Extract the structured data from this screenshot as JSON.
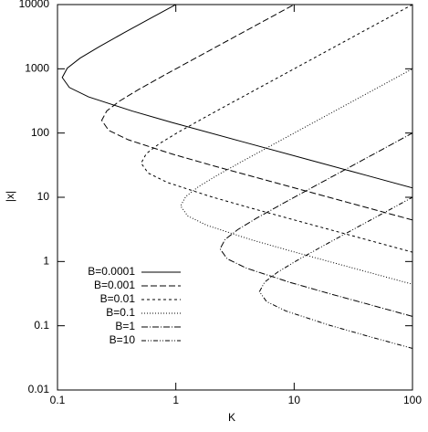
{
  "chart_data": {
    "type": "line",
    "xlabel": "K",
    "ylabel": "|x|",
    "log_x": true,
    "log_y": true,
    "xlim": [
      0.1,
      100
    ],
    "ylim": [
      0.01,
      10000
    ],
    "xticks": [
      0.1,
      1,
      10,
      100
    ],
    "yticks": [
      0.01,
      0.1,
      1,
      10,
      100,
      1000,
      10000
    ],
    "legend": "lower-left",
    "series": [
      {
        "name": "B=0.0001",
        "color": "#000000",
        "dash": "none",
        "x": [
          101.3,
          40.6,
          14.63,
          3.66,
          0.929,
          0.428,
          0.183,
          0.126,
          0.1097,
          0.121,
          0.155,
          0.224,
          0.367,
          0.586,
          1.098
        ],
        "values": [
          13.9,
          22,
          36.6,
          73.2,
          146,
          220,
          366,
          512,
          732,
          1025,
          1464,
          2196,
          3660,
          5856,
          10980
        ]
      },
      {
        "name": "B=0.001",
        "color": "#000000",
        "dash": "7,3",
        "x": [
          100.5,
          31.5,
          7.9,
          2.0,
          0.923,
          0.394,
          0.271,
          0.2365,
          0.261,
          0.335,
          0.482,
          0.792,
          1.263,
          2.366,
          4.731,
          10.09
        ],
        "values": [
          4.42,
          7.89,
          15.8,
          31.5,
          47.3,
          78.9,
          110,
          157.7,
          221,
          315,
          473,
          789,
          1262,
          2366,
          4731,
          10093
        ]
      },
      {
        "name": "B=0.01",
        "color": "#000000",
        "dash": "3,3",
        "x": [
          101.0,
          34.66,
          17.01,
          4.312,
          1.988,
          0.849,
          0.584,
          0.5094,
          0.562,
          0.722,
          1.038,
          1.705,
          2.72,
          5.096,
          10.19,
          20.38,
          33.97,
          100.2
        ],
        "values": [
          1.39,
          2.38,
          3.4,
          6.79,
          10.2,
          17.0,
          23.8,
          33.97,
          47.6,
          67.9,
          101.9,
          169.9,
          271.8,
          509.6,
          1019,
          2038,
          3397,
          10021
        ]
      },
      {
        "name": "B=0.1",
        "color": "#000000",
        "dash": "1,2",
        "x": [
          101.7,
          36.65,
          16.37,
          9.293,
          4.284,
          1.829,
          1.259,
          1.098,
          1.212,
          1.556,
          2.237,
          3.675,
          5.863,
          10.98,
          21.96,
          43.92,
          100.3
        ],
        "values": [
          0.439,
          0.732,
          1.098,
          1.464,
          2.196,
          3.66,
          5.124,
          7.32,
          10.25,
          14.64,
          21.96,
          36.6,
          58.56,
          109.8,
          219.6,
          439.2,
          1003
        ]
      },
      {
        "name": "B=1",
        "color": "#000000",
        "dash": "7,2,1,2",
        "x": [
          99.62,
          35.26,
          20.02,
          9.229,
          3.941,
          2.712,
          2.365,
          2.61,
          3.351,
          4.819,
          7.917,
          12.63,
          23.66,
          47.31,
          99.98
        ],
        "values": [
          0.14,
          0.237,
          0.315,
          0.473,
          0.789,
          1.104,
          1.577,
          2.208,
          3.154,
          4.731,
          7.885,
          12.62,
          23.66,
          47.31,
          100.0
        ]
      },
      {
        "name": "B=10",
        "color": "#000000",
        "dash": "5,2,1,2,1,2",
        "x": [
          100.9,
          43.12,
          19.88,
          8.489,
          5.842,
          5.094,
          5.622,
          7.218,
          10.38,
          17.05,
          27.2,
          50.96,
          99.88
        ],
        "values": [
          0.0442,
          0.0679,
          0.1019,
          0.17,
          0.238,
          0.3397,
          0.476,
          0.679,
          1.019,
          1.699,
          2.718,
          5.096,
          9.987
        ]
      }
    ]
  }
}
